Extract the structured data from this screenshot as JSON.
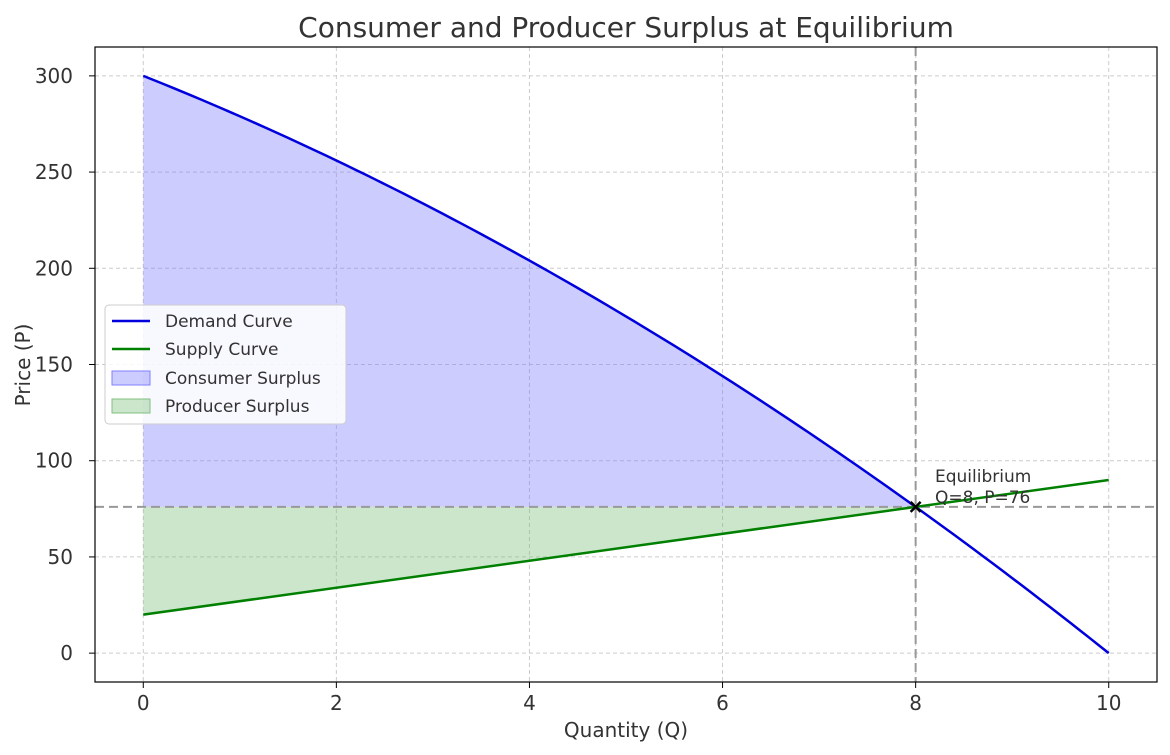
{
  "chart_data": {
    "type": "line",
    "title": "Consumer and Producer Surplus at Equilibrium",
    "xlabel": "Quantity (Q)",
    "ylabel": "Price (P)",
    "xlim": [
      -0.5,
      10.5
    ],
    "ylim": [
      -15,
      315
    ],
    "xticks": [
      0,
      2,
      4,
      6,
      8,
      10
    ],
    "yticks": [
      0,
      50,
      100,
      150,
      200,
      250,
      300
    ],
    "grid": true,
    "legend_position": "center-left",
    "series": [
      {
        "name": "Demand Curve",
        "kind": "line",
        "color": "#0000dd",
        "equation": "P = 300 - 20Q - Q^2",
        "x": [
          0,
          1,
          2,
          3,
          4,
          5,
          6,
          7,
          8,
          9,
          10
        ],
        "y": [
          300,
          279,
          256,
          231,
          204,
          175,
          144,
          111,
          76,
          39,
          0
        ]
      },
      {
        "name": "Supply Curve",
        "kind": "line",
        "color": "#008000",
        "equation": "P = 20 + 7Q",
        "x": [
          0,
          10
        ],
        "y": [
          20,
          90
        ]
      },
      {
        "name": "Consumer Surplus",
        "kind": "area",
        "color": "#8080ff",
        "between": "demand and P=76 for Q in [0,8]"
      },
      {
        "name": "Producer Surplus",
        "kind": "area",
        "color": "#80c080",
        "between": "P=76 and supply for Q in [0,8]"
      }
    ],
    "equilibrium": {
      "q": 8,
      "p": 76,
      "label_line1": "Equilibrium",
      "label_line2": "Q=8, P=76"
    }
  }
}
